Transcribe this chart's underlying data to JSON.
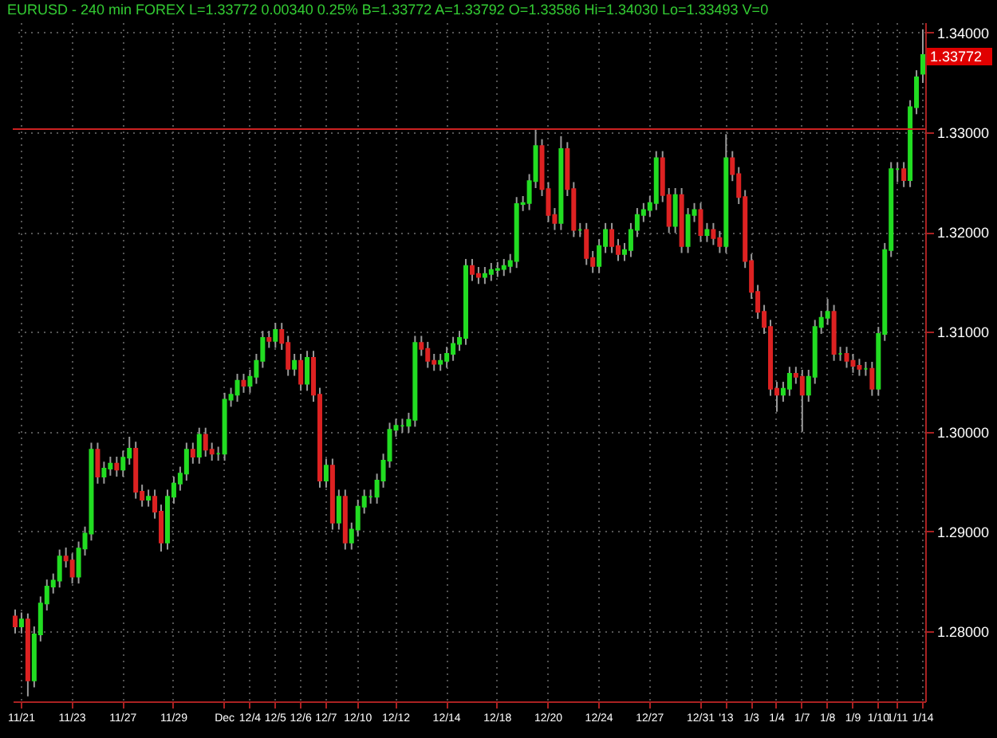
{
  "chart_data": {
    "type": "candlestick",
    "title": "EURUSD - 240 min FOREX L=1.33772 0.00340 0.25% B=1.33772 A=1.33792 O=1.33586 Hi=1.34030 Lo=1.33493 V=0",
    "categories": [
      null,
      "11/21",
      null,
      null,
      null,
      null,
      null,
      null,
      null,
      "11/23",
      null,
      null,
      null,
      null,
      null,
      null,
      null,
      "11/27",
      null,
      null,
      null,
      null,
      null,
      null,
      null,
      "11/29",
      null,
      null,
      null,
      null,
      null,
      null,
      null,
      "Dec",
      null,
      null,
      null,
      "12/4",
      null,
      null,
      null,
      "12/5",
      null,
      null,
      null,
      "12/6",
      null,
      null,
      null,
      "12/7",
      null,
      null,
      null,
      null,
      "12/10",
      null,
      null,
      null,
      null,
      null,
      "12/12",
      null,
      null,
      null,
      null,
      null,
      null,
      null,
      "12/14",
      null,
      null,
      null,
      null,
      null,
      null,
      null,
      "12/18",
      null,
      null,
      null,
      null,
      null,
      null,
      null,
      "12/20",
      null,
      null,
      null,
      null,
      null,
      null,
      null,
      "12/24",
      null,
      null,
      null,
      null,
      null,
      null,
      null,
      "12/27",
      null,
      null,
      null,
      null,
      null,
      null,
      null,
      "12/31",
      null,
      null,
      null,
      "'13",
      null,
      null,
      null,
      "1/3",
      null,
      null,
      null,
      "1/4",
      null,
      null,
      null,
      "1/7",
      null,
      null,
      null,
      "1/8",
      null,
      null,
      null,
      "1/9",
      null,
      null,
      null,
      "1/10",
      null,
      null,
      "1/11",
      null,
      null,
      null,
      "1/14"
    ],
    "ohlc": [
      [
        1.2815,
        1.2822,
        1.2798,
        1.2805
      ],
      [
        1.2805,
        1.2819,
        1.2798,
        1.2812
      ],
      [
        1.2812,
        1.2818,
        1.2735,
        1.2751
      ],
      [
        1.2751,
        1.2805,
        1.2744,
        1.2797
      ],
      [
        1.2797,
        1.2835,
        1.279,
        1.2828
      ],
      [
        1.2828,
        1.2852,
        1.2821,
        1.2845
      ],
      [
        1.2845,
        1.2858,
        1.2838,
        1.2851
      ],
      [
        1.2851,
        1.2882,
        1.2844,
        1.2875
      ],
      [
        1.2875,
        1.2884,
        1.2864,
        1.2871
      ],
      [
        1.2871,
        1.2878,
        1.2848,
        1.2855
      ],
      [
        1.2855,
        1.289,
        1.2848,
        1.2883
      ],
      [
        1.2883,
        1.2905,
        1.2876,
        1.2898
      ],
      [
        1.2898,
        1.2989,
        1.2891,
        1.2982
      ],
      [
        1.2982,
        1.2989,
        1.2948,
        1.2955
      ],
      [
        1.2955,
        1.297,
        1.2948,
        1.2963
      ],
      [
        1.2963,
        1.2975,
        1.2956,
        1.2968
      ],
      [
        1.2968,
        1.2975,
        1.2955,
        1.2962
      ],
      [
        1.2962,
        1.2981,
        1.2955,
        1.2974
      ],
      [
        1.2974,
        1.2995,
        1.2967,
        1.2983
      ],
      [
        1.2983,
        1.299,
        1.2933,
        1.294
      ],
      [
        1.294,
        1.2947,
        1.2925,
        1.2932
      ],
      [
        1.2932,
        1.2942,
        1.2925,
        1.2935
      ],
      [
        1.2935,
        1.2942,
        1.2913,
        1.292
      ],
      [
        1.292,
        1.2927,
        1.288,
        1.2889
      ],
      [
        1.2889,
        1.2942,
        1.2882,
        1.2935
      ],
      [
        1.2935,
        1.2955,
        1.2928,
        1.2948
      ],
      [
        1.2948,
        1.2965,
        1.2941,
        1.2958
      ],
      [
        1.2958,
        1.2989,
        1.2951,
        1.2982
      ],
      [
        1.2982,
        1.2989,
        1.2968,
        1.2975
      ],
      [
        1.2975,
        1.3004,
        1.2968,
        1.2997
      ],
      [
        1.2997,
        1.3004,
        1.2975,
        1.2982
      ],
      [
        1.2982,
        1.2989,
        1.2971,
        1.2978
      ],
      [
        1.2978,
        1.2985,
        1.2971,
        1.2978
      ],
      [
        1.2978,
        1.3039,
        1.2971,
        1.3032
      ],
      [
        1.3032,
        1.3044,
        1.3025,
        1.3037
      ],
      [
        1.3037,
        1.3058,
        1.303,
        1.3051
      ],
      [
        1.3051,
        1.3058,
        1.3039,
        1.3046
      ],
      [
        1.3046,
        1.3062,
        1.3039,
        1.3055
      ],
      [
        1.3055,
        1.3078,
        1.3048,
        1.3071
      ],
      [
        1.3071,
        1.3101,
        1.3064,
        1.3094
      ],
      [
        1.3094,
        1.3101,
        1.3084,
        1.3091
      ],
      [
        1.3091,
        1.3109,
        1.3084,
        1.3102
      ],
      [
        1.3102,
        1.3109,
        1.3082,
        1.3089
      ],
      [
        1.3089,
        1.3096,
        1.3056,
        1.3063
      ],
      [
        1.3063,
        1.3078,
        1.3056,
        1.3071
      ],
      [
        1.3071,
        1.3078,
        1.3041,
        1.3048
      ],
      [
        1.3048,
        1.3081,
        1.3041,
        1.3074
      ],
      [
        1.3074,
        1.3081,
        1.303,
        1.3037
      ],
      [
        1.3037,
        1.3044,
        1.2944,
        1.2951
      ],
      [
        1.2951,
        1.2973,
        1.2944,
        1.2966
      ],
      [
        1.2966,
        1.2973,
        1.2902,
        1.2909
      ],
      [
        1.2909,
        1.2942,
        1.2902,
        1.2935
      ],
      [
        1.2935,
        1.2942,
        1.2882,
        1.2889
      ],
      [
        1.2889,
        1.2909,
        1.2882,
        1.2902
      ],
      [
        1.2902,
        1.2932,
        1.2895,
        1.2925
      ],
      [
        1.2925,
        1.2942,
        1.2918,
        1.2935
      ],
      [
        1.2935,
        1.2942,
        1.2928,
        1.2935
      ],
      [
        1.2935,
        1.2958,
        1.2928,
        1.2951
      ],
      [
        1.2951,
        1.2978,
        1.2944,
        1.2971
      ],
      [
        1.2971,
        1.3009,
        1.2964,
        1.3002
      ],
      [
        1.3002,
        1.3013,
        1.2995,
        1.3006
      ],
      [
        1.3006,
        1.3013,
        1.2999,
        1.3006
      ],
      [
        1.3006,
        1.3019,
        1.2999,
        1.3012
      ],
      [
        1.3012,
        1.3096,
        1.3005,
        1.3089
      ],
      [
        1.3089,
        1.3096,
        1.3076,
        1.3083
      ],
      [
        1.3083,
        1.309,
        1.3064,
        1.3071
      ],
      [
        1.3071,
        1.3078,
        1.3061,
        1.3068
      ],
      [
        1.3068,
        1.3078,
        1.3061,
        1.3071
      ],
      [
        1.3071,
        1.3085,
        1.3064,
        1.3078
      ],
      [
        1.3078,
        1.3095,
        1.3071,
        1.3088
      ],
      [
        1.3088,
        1.3101,
        1.3081,
        1.3094
      ],
      [
        1.3094,
        1.3173,
        1.3087,
        1.3166
      ],
      [
        1.3166,
        1.3173,
        1.3151,
        1.3158
      ],
      [
        1.3158,
        1.3165,
        1.3148,
        1.3155
      ],
      [
        1.3155,
        1.3165,
        1.3148,
        1.3158
      ],
      [
        1.3158,
        1.3169,
        1.3151,
        1.3162
      ],
      [
        1.3162,
        1.317,
        1.3155,
        1.3163
      ],
      [
        1.3163,
        1.3173,
        1.3156,
        1.3166
      ],
      [
        1.3166,
        1.3178,
        1.3159,
        1.3171
      ],
      [
        1.3171,
        1.3235,
        1.3164,
        1.3228
      ],
      [
        1.3228,
        1.3236,
        1.3221,
        1.3229
      ],
      [
        1.3229,
        1.3258,
        1.3222,
        1.3251
      ],
      [
        1.3251,
        1.3303,
        1.3244,
        1.3286
      ],
      [
        1.3286,
        1.3293,
        1.3236,
        1.3243
      ],
      [
        1.3243,
        1.325,
        1.321,
        1.3217
      ],
      [
        1.3217,
        1.3224,
        1.3202,
        1.3209
      ],
      [
        1.3209,
        1.3296,
        1.3202,
        1.3283
      ],
      [
        1.3283,
        1.329,
        1.3236,
        1.3243
      ],
      [
        1.3243,
        1.325,
        1.3195,
        1.3202
      ],
      [
        1.3202,
        1.3209,
        1.3195,
        1.3202
      ],
      [
        1.3202,
        1.3209,
        1.3167,
        1.3174
      ],
      [
        1.3174,
        1.3181,
        1.3159,
        1.3166
      ],
      [
        1.3166,
        1.3193,
        1.3159,
        1.3186
      ],
      [
        1.3186,
        1.3209,
        1.3179,
        1.3202
      ],
      [
        1.3202,
        1.3209,
        1.3179,
        1.3186
      ],
      [
        1.3186,
        1.3193,
        1.3171,
        1.3178
      ],
      [
        1.3178,
        1.3189,
        1.3171,
        1.3182
      ],
      [
        1.3182,
        1.3209,
        1.3175,
        1.3202
      ],
      [
        1.3202,
        1.3224,
        1.3195,
        1.3217
      ],
      [
        1.3217,
        1.3229,
        1.321,
        1.3222
      ],
      [
        1.3222,
        1.3236,
        1.3215,
        1.3229
      ],
      [
        1.3229,
        1.3281,
        1.3222,
        1.3274
      ],
      [
        1.3274,
        1.3281,
        1.323,
        1.3237
      ],
      [
        1.3237,
        1.3244,
        1.3199,
        1.3206
      ],
      [
        1.3206,
        1.3244,
        1.3199,
        1.3237
      ],
      [
        1.3237,
        1.3244,
        1.3179,
        1.3186
      ],
      [
        1.3186,
        1.3224,
        1.3179,
        1.3217
      ],
      [
        1.3217,
        1.3229,
        1.321,
        1.3222
      ],
      [
        1.3222,
        1.3229,
        1.319,
        1.3197
      ],
      [
        1.3197,
        1.3209,
        1.319,
        1.3202
      ],
      [
        1.3202,
        1.3209,
        1.3187,
        1.3194
      ],
      [
        1.3194,
        1.3201,
        1.3179,
        1.3186
      ],
      [
        1.3186,
        1.3298,
        1.3179,
        1.3274
      ],
      [
        1.3274,
        1.3281,
        1.3251,
        1.3258
      ],
      [
        1.3258,
        1.3265,
        1.3228,
        1.3235
      ],
      [
        1.3235,
        1.3242,
        1.3164,
        1.3171
      ],
      [
        1.3171,
        1.3178,
        1.3133,
        1.314
      ],
      [
        1.314,
        1.3147,
        1.3113,
        1.312
      ],
      [
        1.312,
        1.3127,
        1.3098,
        1.3105
      ],
      [
        1.3105,
        1.3112,
        1.3036,
        1.3043
      ],
      [
        1.3043,
        1.305,
        1.302,
        1.3037
      ],
      [
        1.3037,
        1.305,
        1.303,
        1.3043
      ],
      [
        1.3043,
        1.3065,
        1.3036,
        1.3058
      ],
      [
        1.3058,
        1.3065,
        1.3048,
        1.3055
      ],
      [
        1.3055,
        1.3062,
        1.3,
        1.3037
      ],
      [
        1.3037,
        1.3062,
        1.303,
        1.3055
      ],
      [
        1.3055,
        1.3112,
        1.3048,
        1.3105
      ],
      [
        1.3105,
        1.3121,
        1.3098,
        1.3114
      ],
      [
        1.3114,
        1.3133,
        1.3107,
        1.312
      ],
      [
        1.312,
        1.3127,
        1.3071,
        1.3078
      ],
      [
        1.3078,
        1.3085,
        1.3071,
        1.3078
      ],
      [
        1.3078,
        1.3085,
        1.3064,
        1.3071
      ],
      [
        1.3071,
        1.3078,
        1.3059,
        1.3066
      ],
      [
        1.3066,
        1.3073,
        1.3056,
        1.3063
      ],
      [
        1.3063,
        1.307,
        1.3056,
        1.3063
      ],
      [
        1.3063,
        1.307,
        1.3036,
        1.3043
      ],
      [
        1.3043,
        1.3105,
        1.3036,
        1.3098
      ],
      [
        1.3098,
        1.3189,
        1.3091,
        1.3182
      ],
      [
        1.3182,
        1.327,
        1.3175,
        1.3263
      ],
      [
        1.3263,
        1.327,
        1.325,
        1.3263
      ],
      [
        1.3263,
        1.327,
        1.3245,
        1.3252
      ],
      [
        1.3252,
        1.3332,
        1.3245,
        1.3325
      ],
      [
        1.3325,
        1.3362,
        1.3318,
        1.3355
      ],
      [
        1.33586,
        1.3403,
        1.33493,
        1.33772
      ]
    ],
    "colors": [
      "#dd2222",
      "#22dd22",
      "#dd2222",
      "#22dd22",
      "#22dd22",
      "#22dd22",
      "#22dd22",
      "#22dd22",
      "#dd2222",
      "#dd2222",
      "#22dd22",
      "#22dd22",
      "#22dd22",
      "#dd2222",
      "#22dd22",
      "#22dd22",
      "#dd2222",
      "#22dd22",
      "#22dd22",
      "#dd2222",
      "#dd2222",
      "#22dd22",
      "#dd2222",
      "#dd2222",
      "#22dd22",
      "#22dd22",
      "#22dd22",
      "#22dd22",
      "#dd2222",
      "#22dd22",
      "#dd2222",
      "#dd2222",
      "#22dd22",
      "#22dd22",
      "#22dd22",
      "#22dd22",
      "#dd2222",
      "#22dd22",
      "#22dd22",
      "#22dd22",
      "#dd2222",
      "#22dd22",
      "#dd2222",
      "#dd2222",
      "#22dd22",
      "#dd2222",
      "#22dd22",
      "#dd2222",
      "#dd2222",
      "#22dd22",
      "#dd2222",
      "#22dd22",
      "#dd2222",
      "#22dd22",
      "#22dd22",
      "#22dd22",
      "#22dd22",
      "#22dd22",
      "#22dd22",
      "#22dd22",
      "#22dd22",
      "#22dd22",
      "#22dd22",
      "#22dd22",
      "#dd2222",
      "#dd2222",
      "#dd2222",
      "#22dd22",
      "#22dd22",
      "#22dd22",
      "#22dd22",
      "#22dd22",
      "#dd2222",
      "#dd2222",
      "#22dd22",
      "#22dd22",
      "#22dd22",
      "#22dd22",
      "#22dd22",
      "#22dd22",
      "#22dd22",
      "#22dd22",
      "#22dd22",
      "#dd2222",
      "#dd2222",
      "#dd2222",
      "#22dd22",
      "#dd2222",
      "#dd2222",
      "#22dd22",
      "#dd2222",
      "#dd2222",
      "#22dd22",
      "#22dd22",
      "#dd2222",
      "#dd2222",
      "#22dd22",
      "#22dd22",
      "#22dd22",
      "#22dd22",
      "#22dd22",
      "#22dd22",
      "#dd2222",
      "#dd2222",
      "#22dd22",
      "#dd2222",
      "#22dd22",
      "#22dd22",
      "#dd2222",
      "#22dd22",
      "#dd2222",
      "#dd2222",
      "#22dd22",
      "#dd2222",
      "#dd2222",
      "#dd2222",
      "#dd2222",
      "#dd2222",
      "#dd2222",
      "#dd2222",
      "#dd2222",
      "#22dd22",
      "#22dd22",
      "#dd2222",
      "#dd2222",
      "#22dd22",
      "#22dd22",
      "#22dd22",
      "#22dd22",
      "#dd2222",
      "#22dd22",
      "#dd2222",
      "#dd2222",
      "#dd2222",
      "#22dd22",
      "#dd2222",
      "#22dd22",
      "#22dd22",
      "#22dd22",
      "#22dd22",
      "#dd2222",
      "#22dd22",
      "#22dd22",
      "#22dd22"
    ],
    "ylim": [
      1.273,
      1.341
    ],
    "yticks": [
      {
        "value": 1.28,
        "label": "1.28000"
      },
      {
        "value": 1.29,
        "label": "1.29000"
      },
      {
        "value": 1.3,
        "label": "1.30000"
      },
      {
        "value": 1.31,
        "label": "1.31000"
      },
      {
        "value": 1.32,
        "label": "1.32000"
      },
      {
        "value": 1.33,
        "label": "1.33000"
      },
      {
        "value": 1.34,
        "label": "1.34000"
      }
    ],
    "ref_lines": [
      {
        "axis": "y",
        "value": 1.3303,
        "color": "#cc2222"
      }
    ],
    "annotations": [
      "1.33772"
    ],
    "grid": true
  }
}
